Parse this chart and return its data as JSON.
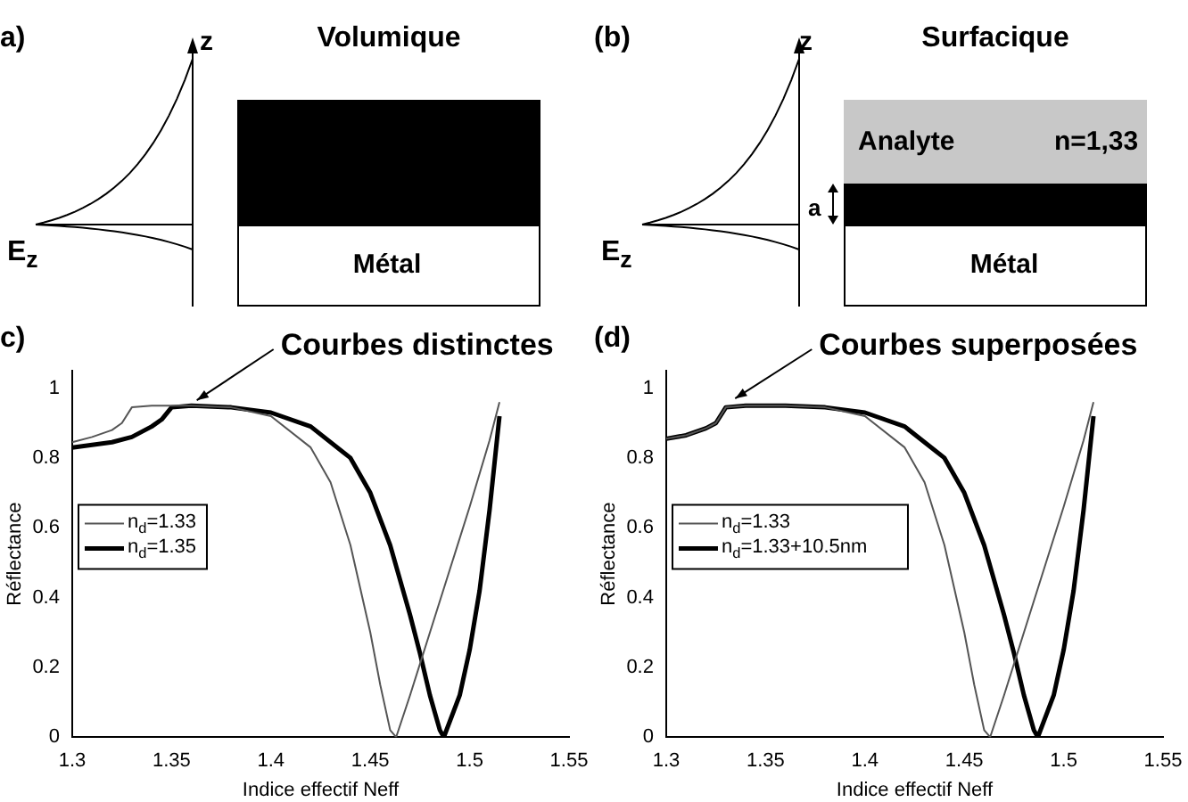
{
  "chart_data": [
    {
      "type": "other",
      "title": "Volumique",
      "annotations": [
        "a)",
        "z",
        "E$_{z}$",
        "Métal"
      ]
    },
    {
      "type": "other",
      "title": "Surfacique",
      "annotations": [
        "(b)",
        "z",
        "E$_{z}$",
        "Analyte",
        "n=1,33",
        "a",
        "Métal"
      ]
    },
    {
      "type": "line",
      "xlabel": "Indice effectif Neff",
      "ylabel": "Réflectance",
      "xlim": [
        1.3,
        1.55
      ],
      "xticks": [
        1.3,
        1.35,
        1.4,
        1.45,
        1.5,
        1.55
      ],
      "ylim": [
        0,
        1.05
      ],
      "yticks": [
        0,
        0.2,
        0.4,
        0.6,
        0.8,
        1
      ],
      "grid": false,
      "legend": "left",
      "annotations": [
        "c)",
        {
          "text": "Courbes distinctes",
          "x": 1.36,
          "y": 0.95
        }
      ],
      "series": [
        {
          "name": "n$_{d}$=1.33",
          "color": "#555555",
          "x": [
            1.3,
            1.31,
            1.32,
            1.325,
            1.33,
            1.34,
            1.36,
            1.38,
            1.4,
            1.42,
            1.43,
            1.44,
            1.45,
            1.455,
            1.46,
            1.463,
            1.47,
            1.48,
            1.49,
            1.5,
            1.51,
            1.515
          ],
          "values": [
            0.845,
            0.86,
            0.88,
            0.9,
            0.945,
            0.95,
            0.95,
            0.945,
            0.92,
            0.83,
            0.73,
            0.55,
            0.3,
            0.15,
            0.02,
            0,
            0.12,
            0.3,
            0.48,
            0.66,
            0.85,
            0.96
          ]
        },
        {
          "name": "n$_{d}$=1.35",
          "color": "#000000",
          "x": [
            1.3,
            1.32,
            1.33,
            1.34,
            1.345,
            1.35,
            1.36,
            1.38,
            1.4,
            1.42,
            1.44,
            1.45,
            1.46,
            1.47,
            1.475,
            1.48,
            1.485,
            1.487,
            1.495,
            1.5,
            1.505,
            1.51,
            1.515
          ],
          "values": [
            0.83,
            0.845,
            0.86,
            0.89,
            0.91,
            0.945,
            0.95,
            0.945,
            0.93,
            0.89,
            0.8,
            0.7,
            0.55,
            0.35,
            0.24,
            0.12,
            0.02,
            0,
            0.12,
            0.25,
            0.42,
            0.65,
            0.92
          ]
        }
      ]
    },
    {
      "type": "line",
      "xlabel": "Indice effectif Neff",
      "ylabel": "Réflectance",
      "xlim": [
        1.3,
        1.55
      ],
      "xticks": [
        1.3,
        1.35,
        1.4,
        1.45,
        1.5,
        1.55
      ],
      "ylim": [
        0,
        1.05
      ],
      "yticks": [
        0,
        0.2,
        0.4,
        0.6,
        0.8,
        1
      ],
      "grid": false,
      "legend": "left",
      "annotations": [
        "(d)",
        {
          "text": "Courbes superposées",
          "x": 1.332,
          "y": 0.955
        }
      ],
      "series": [
        {
          "name": "n$_{d}$=1.33",
          "color": "#555555",
          "x": [
            1.3,
            1.31,
            1.32,
            1.325,
            1.33,
            1.34,
            1.36,
            1.38,
            1.4,
            1.42,
            1.43,
            1.44,
            1.45,
            1.455,
            1.46,
            1.463,
            1.47,
            1.48,
            1.49,
            1.5,
            1.51,
            1.515
          ],
          "values": [
            0.855,
            0.865,
            0.885,
            0.9,
            0.945,
            0.95,
            0.95,
            0.945,
            0.92,
            0.83,
            0.73,
            0.55,
            0.3,
            0.15,
            0.02,
            0,
            0.12,
            0.3,
            0.48,
            0.66,
            0.85,
            0.96
          ]
        },
        {
          "name": "n$_{d}$=1.33+10.5nm",
          "color": "#000000",
          "x": [
            1.3,
            1.31,
            1.32,
            1.325,
            1.33,
            1.34,
            1.36,
            1.38,
            1.4,
            1.42,
            1.44,
            1.45,
            1.46,
            1.47,
            1.475,
            1.48,
            1.485,
            1.487,
            1.495,
            1.5,
            1.505,
            1.51,
            1.515
          ],
          "values": [
            0.855,
            0.865,
            0.885,
            0.9,
            0.945,
            0.95,
            0.95,
            0.945,
            0.93,
            0.89,
            0.8,
            0.7,
            0.55,
            0.35,
            0.24,
            0.12,
            0.02,
            0,
            0.12,
            0.25,
            0.42,
            0.65,
            0.92
          ]
        }
      ]
    }
  ]
}
